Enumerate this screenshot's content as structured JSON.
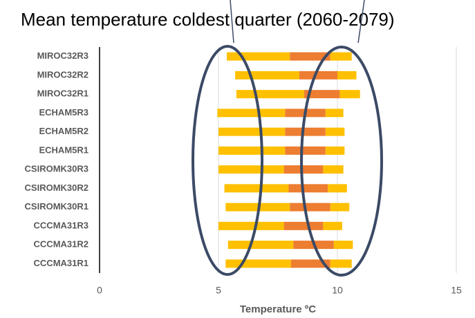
{
  "chart_data": {
    "type": "stacked_barh",
    "title": "Mean temperature coldest quarter (2060-2079)",
    "xlabel": "Temperature ºC",
    "categories": [
      "MIROC32R3",
      "MIROC32R2",
      "MIROC32R1",
      "ECHAM5R3",
      "ECHAM5R2",
      "ECHAM5R1",
      "CSIROMK30R3",
      "CSIROMK30R2",
      "CSIROMK30R1",
      "CCCMA31R3",
      "CCCMA31R2",
      "CCCMA31R1"
    ],
    "series": [
      {
        "color": "none",
        "values": [
          5.35,
          5.7,
          5.75,
          4.95,
          5.0,
          5.0,
          5.0,
          5.25,
          5.3,
          5.0,
          5.4,
          5.3
        ]
      },
      {
        "color": "#ffc000",
        "values": [
          2.65,
          2.7,
          2.85,
          2.85,
          2.8,
          2.8,
          2.75,
          2.7,
          2.7,
          2.75,
          2.75,
          2.75
        ]
      },
      {
        "color": "#ed7d31",
        "values": [
          1.7,
          1.6,
          1.5,
          1.7,
          1.7,
          1.7,
          1.65,
          1.65,
          1.7,
          1.65,
          1.7,
          1.65
        ]
      },
      {
        "color": "#ffc000",
        "values": [
          0.9,
          0.8,
          0.85,
          0.75,
          0.8,
          0.8,
          0.85,
          0.8,
          0.8,
          0.8,
          0.8,
          0.9
        ]
      }
    ],
    "xlim": [
      0,
      15
    ],
    "xticks": [
      0,
      5,
      10,
      15
    ],
    "grid": true
  }
}
